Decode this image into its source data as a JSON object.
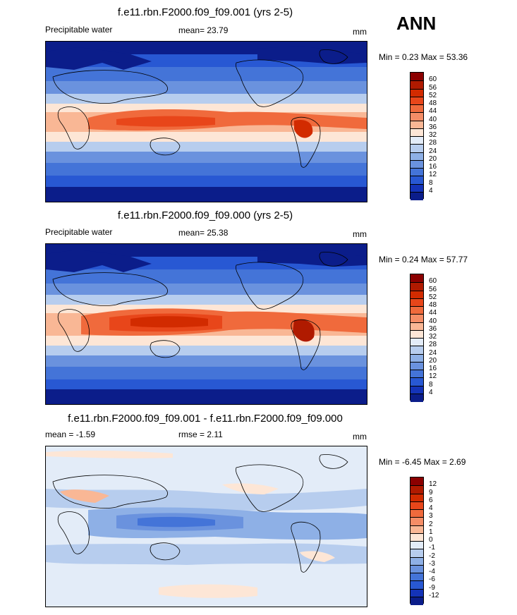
{
  "season": "ANN",
  "panels": [
    {
      "title": "f.e11.rbn.F2000.f09_f09.001 (yrs 2-5)",
      "variable": "Precipitable water",
      "stat1": "mean=  23.79",
      "stat2": "",
      "units": "mm",
      "minmax": "Min =   0.23 Max =  53.36",
      "colorbar": {
        "labels": [
          "60",
          "56",
          "52",
          "48",
          "44",
          "40",
          "36",
          "32",
          "28",
          "24",
          "20",
          "16",
          "12",
          "8",
          "4"
        ],
        "colors": [
          "#8b0000",
          "#b01a00",
          "#d22b00",
          "#e8461a",
          "#f06a3c",
          "#f58d66",
          "#f9b795",
          "#fde6d6",
          "#e3ecf8",
          "#b7cdee",
          "#8eb0e6",
          "#6a92de",
          "#4474d8",
          "#2858d3",
          "#1433b8",
          "#0b1d8a"
        ]
      }
    },
    {
      "title": "f.e11.rbn.F2000.f09_f09.000 (yrs 2-5)",
      "variable": "Precipitable water",
      "stat1": "mean=  25.38",
      "stat2": "",
      "units": "mm",
      "minmax": "Min =   0.24 Max =  57.77",
      "colorbar": {
        "labels": [
          "60",
          "56",
          "52",
          "48",
          "44",
          "40",
          "36",
          "32",
          "28",
          "24",
          "20",
          "16",
          "12",
          "8",
          "4"
        ],
        "colors": [
          "#8b0000",
          "#b01a00",
          "#d22b00",
          "#e8461a",
          "#f06a3c",
          "#f58d66",
          "#f9b795",
          "#fde6d6",
          "#e3ecf8",
          "#b7cdee",
          "#8eb0e6",
          "#6a92de",
          "#4474d8",
          "#2858d3",
          "#1433b8",
          "#0b1d8a"
        ]
      }
    },
    {
      "title": "f.e11.rbn.F2000.f09_f09.001 - f.e11.rbn.F2000.f09_f09.000",
      "variable": "",
      "stat1": "mean =  -1.59",
      "stat2": "rmse =   2.11",
      "units": "mm",
      "minmax": "Min =  -6.45 Max =   2.69",
      "colorbar": {
        "labels": [
          "12",
          "9",
          "6",
          "4",
          "3",
          "2",
          "1",
          "0",
          "-1",
          "-2",
          "-3",
          "-4",
          "-6",
          "-9",
          "-12"
        ],
        "colors": [
          "#8b0000",
          "#b01a00",
          "#d22b00",
          "#e8461a",
          "#f06a3c",
          "#f58d66",
          "#f9b795",
          "#fde6d6",
          "#e3ecf8",
          "#b7cdee",
          "#8eb0e6",
          "#6a92de",
          "#4474d8",
          "#2858d3",
          "#1433b8",
          "#0b1d8a"
        ]
      }
    }
  ]
}
